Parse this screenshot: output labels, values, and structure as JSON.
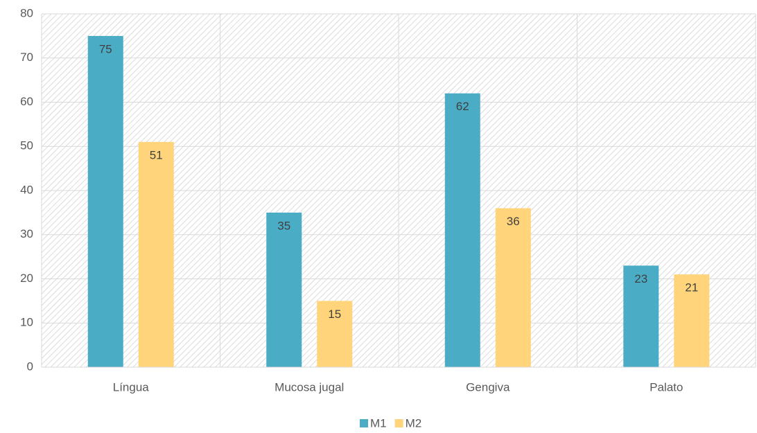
{
  "chart_data": {
    "type": "bar",
    "categories": [
      "Língua",
      "Mucosa jugal",
      "Gengiva",
      "Palato"
    ],
    "series": [
      {
        "name": "M1",
        "color": "#4bacc6",
        "values": [
          75,
          35,
          62,
          23
        ]
      },
      {
        "name": "M2",
        "color": "#ffd47a",
        "values": [
          51,
          15,
          36,
          21
        ]
      }
    ],
    "ylim": [
      0,
      80
    ],
    "yticks": [
      0,
      10,
      20,
      30,
      40,
      50,
      60,
      70,
      80
    ],
    "grid": true,
    "legend": "bottom"
  }
}
